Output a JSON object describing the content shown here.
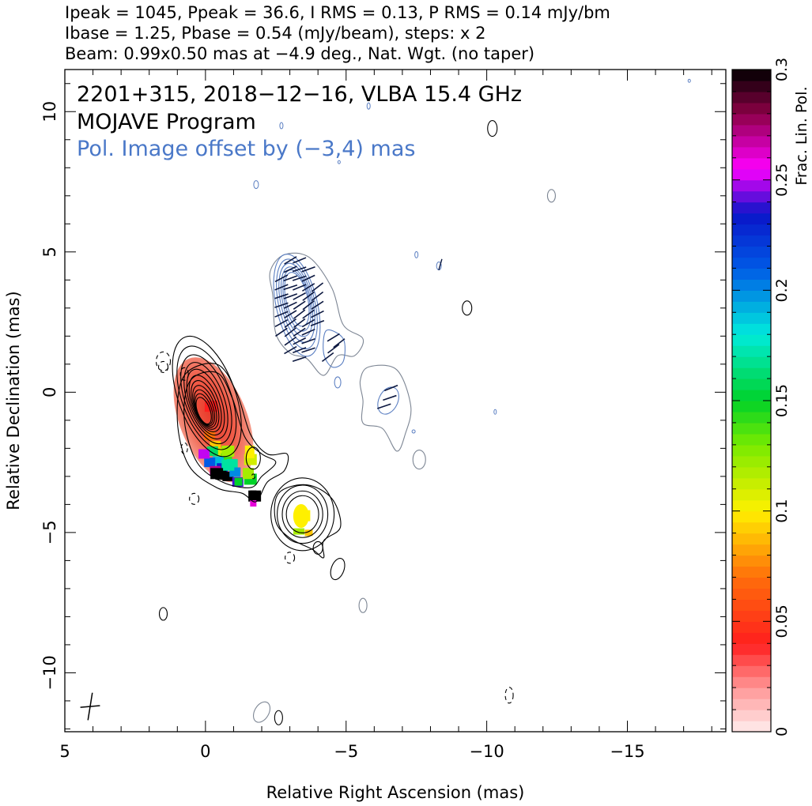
{
  "header": {
    "line1": "Ipeak = 1045, Ppeak = 36.6, I RMS = 0.13, P RMS = 0.14 mJy/bm",
    "line2": "Ibase = 1.25, Pbase = 0.54 (mJy/beam), steps: x 2",
    "line3": "Beam: 0.99x0.50 mas at −4.9 deg., Nat. Wgt. (no taper)"
  },
  "annotations": {
    "source": "2201+315, 2018−12−16, VLBA 15.4 GHz",
    "program": "MOJAVE Program",
    "offset": "Pol. Image offset by (−3,4) mas"
  },
  "colors": {
    "offset_text": "#4a78c8",
    "pol_contour": "#5b7fc2",
    "stokes_i_contour": "#000000",
    "grey_contour": "#7d8694"
  },
  "chart_data": {
    "type": "heatmap",
    "xlabel": "Relative Right Ascension (mas)",
    "ylabel": "Relative Declination (mas)",
    "xlim": [
      5.0,
      -18.5
    ],
    "ylim": [
      -12.1,
      11.5
    ],
    "x_ticks": [
      5,
      0,
      -5,
      -10,
      -15
    ],
    "x_tick_labels": [
      "5",
      "0",
      "−5",
      "−10",
      "−15"
    ],
    "y_ticks": [
      -10,
      -5,
      0,
      5,
      10
    ],
    "y_tick_labels": [
      "−10",
      "−5",
      "0",
      "5",
      "10"
    ],
    "colorbar": {
      "label": "Frac. Lin. Pol.",
      "range": [
        0,
        0.3
      ],
      "ticks": [
        0,
        0.05,
        0.1,
        0.15,
        0.2,
        0.25,
        0.3
      ],
      "tick_labels": [
        "0",
        "0.05",
        "0.1",
        "0.15",
        "0.2",
        "0.25",
        "0.3"
      ]
    },
    "beam": {
      "major_mas": 0.99,
      "minor_mas": 0.5,
      "pa_deg": -4.9,
      "position": "bottom-left"
    },
    "stokes_i_contours": {
      "peak_mjy": 1045,
      "base_mjy": 1.25,
      "step_factor": 2,
      "components": [
        {
          "name": "core",
          "x": -0.2,
          "y": -0.7
        },
        {
          "name": "inner-jet",
          "x": -1.6,
          "y": -2.7
        },
        {
          "name": "knot",
          "x": -3.4,
          "y": -4.3
        }
      ]
    },
    "polarization_image": {
      "offset_mas": [
        -3,
        4
      ],
      "base_mjy": 0.54,
      "components": [
        {
          "name": "core-pol",
          "x": -3.2,
          "y": 3.2
        },
        {
          "name": "jet-pol-1",
          "x": -4.6,
          "y": 1.6
        },
        {
          "name": "jet-pol-2",
          "x": -6.5,
          "y": -0.3
        }
      ]
    },
    "fractional_polarization_regions": [
      {
        "x": -0.2,
        "y": -0.5,
        "value": 0.04
      },
      {
        "x": -0.8,
        "y": -2.1,
        "value": 0.12
      },
      {
        "x": -0.8,
        "y": -2.6,
        "value": 0.17
      },
      {
        "x": -0.4,
        "y": -2.9,
        "value": 0.3
      },
      {
        "x": -1.6,
        "y": -2.4,
        "value": 0.11
      },
      {
        "x": -1.6,
        "y": -3.1,
        "value": 0.15
      },
      {
        "x": -1.75,
        "y": -3.7,
        "value": 0.3
      },
      {
        "x": -3.5,
        "y": -4.4,
        "value": 0.1
      }
    ]
  }
}
